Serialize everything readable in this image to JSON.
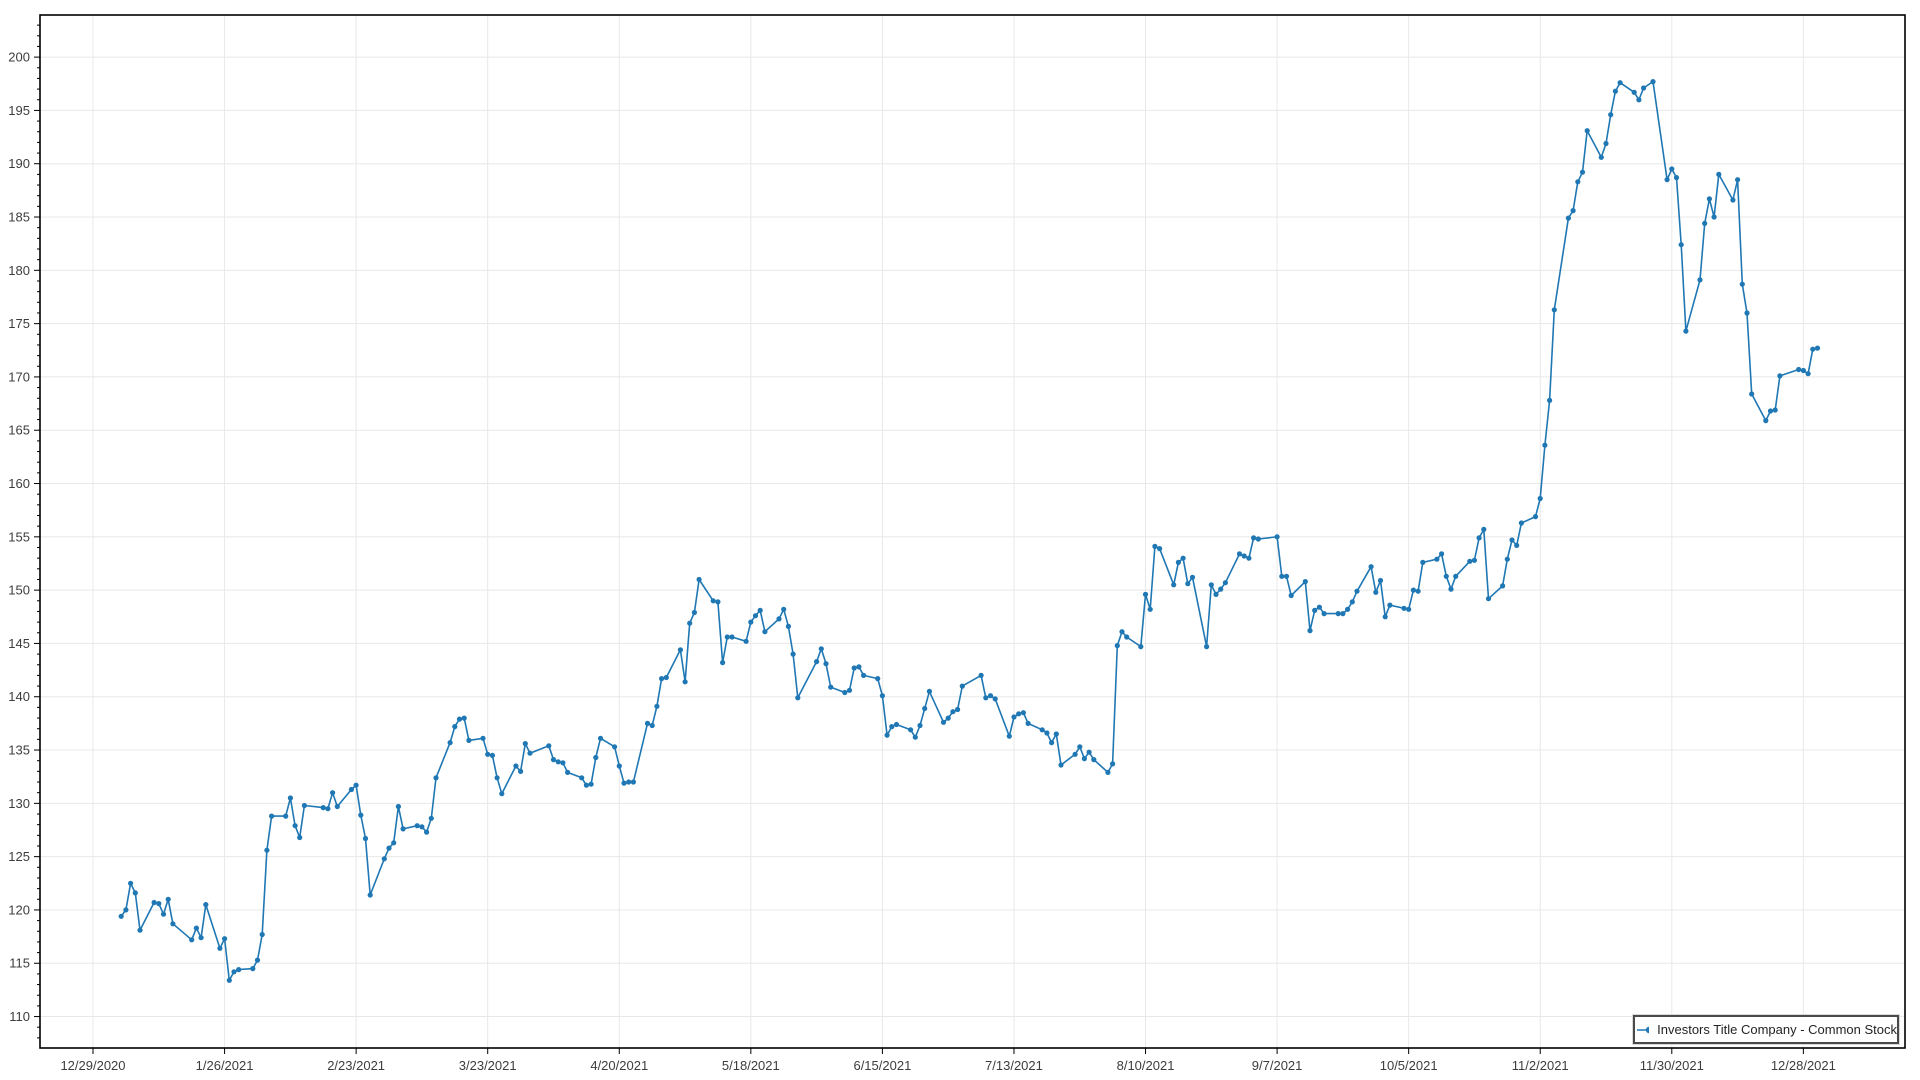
{
  "chart_data": {
    "type": "line",
    "title": "",
    "xlabel": "",
    "ylabel": "",
    "grid": true,
    "marker": "circle",
    "legend_position": "bottom-right",
    "colors": {
      "series": "#1f77b4",
      "grid": "#e8e8e8",
      "axis": "#000000",
      "tick_label": "#3d3d3d",
      "legend_border": "#4a4a4a",
      "background": "#ffffff"
    },
    "axes": {
      "x_epoch": "2020-12-29",
      "x_tick_interval_days": 28,
      "xlim_days": [
        -11.28,
        385.63
      ],
      "ylim": [
        107.05,
        203.95
      ],
      "y_major_step": 5,
      "y_minor_step": 1
    },
    "x_tick_labels": [
      "12/29/2020",
      "1/26/2021",
      "2/23/2021",
      "3/23/2021",
      "4/20/2021",
      "5/18/2021",
      "6/15/2021",
      "7/13/2021",
      "8/10/2021",
      "9/7/2021",
      "10/5/2021",
      "11/2/2021",
      "11/30/2021",
      "12/28/2021"
    ],
    "y_ticks": [
      110,
      115,
      120,
      125,
      130,
      135,
      140,
      145,
      150,
      155,
      160,
      165,
      170,
      175,
      180,
      185,
      190,
      195,
      200
    ],
    "series": [
      {
        "name": "Investors Title Company - Common Stock",
        "color": "#1f77b4",
        "dates": [
          "2021-01-04",
          "2021-01-05",
          "2021-01-06",
          "2021-01-07",
          "2021-01-08",
          "2021-01-11",
          "2021-01-12",
          "2021-01-13",
          "2021-01-14",
          "2021-01-15",
          "2021-01-19",
          "2021-01-20",
          "2021-01-21",
          "2021-01-22",
          "2021-01-25",
          "2021-01-26",
          "2021-01-27",
          "2021-01-28",
          "2021-01-29",
          "2021-02-01",
          "2021-02-02",
          "2021-02-03",
          "2021-02-04",
          "2021-02-05",
          "2021-02-08",
          "2021-02-09",
          "2021-02-10",
          "2021-02-11",
          "2021-02-12",
          "2021-02-16",
          "2021-02-17",
          "2021-02-18",
          "2021-02-19",
          "2021-02-22",
          "2021-02-23",
          "2021-02-24",
          "2021-02-25",
          "2021-02-26",
          "2021-03-01",
          "2021-03-02",
          "2021-03-03",
          "2021-03-04",
          "2021-03-05",
          "2021-03-08",
          "2021-03-09",
          "2021-03-10",
          "2021-03-11",
          "2021-03-12",
          "2021-03-15",
          "2021-03-16",
          "2021-03-17",
          "2021-03-18",
          "2021-03-19",
          "2021-03-22",
          "2021-03-23",
          "2021-03-24",
          "2021-03-25",
          "2021-03-26",
          "2021-03-29",
          "2021-03-30",
          "2021-03-31",
          "2021-04-01",
          "2021-04-05",
          "2021-04-06",
          "2021-04-07",
          "2021-04-08",
          "2021-04-09",
          "2021-04-12",
          "2021-04-13",
          "2021-04-14",
          "2021-04-15",
          "2021-04-16",
          "2021-04-19",
          "2021-04-20",
          "2021-04-21",
          "2021-04-22",
          "2021-04-23",
          "2021-04-26",
          "2021-04-27",
          "2021-04-28",
          "2021-04-29",
          "2021-04-30",
          "2021-05-03",
          "2021-05-04",
          "2021-05-05",
          "2021-05-06",
          "2021-05-07",
          "2021-05-10",
          "2021-05-11",
          "2021-05-12",
          "2021-05-13",
          "2021-05-14",
          "2021-05-17",
          "2021-05-18",
          "2021-05-19",
          "2021-05-20",
          "2021-05-21",
          "2021-05-24",
          "2021-05-25",
          "2021-05-26",
          "2021-05-27",
          "2021-05-28",
          "2021-06-01",
          "2021-06-02",
          "2021-06-03",
          "2021-06-04",
          "2021-06-07",
          "2021-06-08",
          "2021-06-09",
          "2021-06-10",
          "2021-06-11",
          "2021-06-14",
          "2021-06-15",
          "2021-06-16",
          "2021-06-17",
          "2021-06-18",
          "2021-06-21",
          "2021-06-22",
          "2021-06-23",
          "2021-06-24",
          "2021-06-25",
          "2021-06-28",
          "2021-06-29",
          "2021-06-30",
          "2021-07-01",
          "2021-07-02",
          "2021-07-06",
          "2021-07-07",
          "2021-07-08",
          "2021-07-09",
          "2021-07-12",
          "2021-07-13",
          "2021-07-14",
          "2021-07-15",
          "2021-07-16",
          "2021-07-19",
          "2021-07-20",
          "2021-07-21",
          "2021-07-22",
          "2021-07-23",
          "2021-07-26",
          "2021-07-27",
          "2021-07-28",
          "2021-07-29",
          "2021-07-30",
          "2021-08-02",
          "2021-08-03",
          "2021-08-04",
          "2021-08-05",
          "2021-08-06",
          "2021-08-09",
          "2021-08-10",
          "2021-08-11",
          "2021-08-12",
          "2021-08-13",
          "2021-08-16",
          "2021-08-17",
          "2021-08-18",
          "2021-08-19",
          "2021-08-20",
          "2021-08-23",
          "2021-08-24",
          "2021-08-25",
          "2021-08-26",
          "2021-08-27",
          "2021-08-30",
          "2021-08-31",
          "2021-09-01",
          "2021-09-02",
          "2021-09-03",
          "2021-09-07",
          "2021-09-08",
          "2021-09-09",
          "2021-09-10",
          "2021-09-13",
          "2021-09-14",
          "2021-09-15",
          "2021-09-16",
          "2021-09-17",
          "2021-09-20",
          "2021-09-21",
          "2021-09-22",
          "2021-09-23",
          "2021-09-24",
          "2021-09-27",
          "2021-09-28",
          "2021-09-29",
          "2021-09-30",
          "2021-10-01",
          "2021-10-04",
          "2021-10-05",
          "2021-10-06",
          "2021-10-07",
          "2021-10-08",
          "2021-10-11",
          "2021-10-12",
          "2021-10-13",
          "2021-10-14",
          "2021-10-15",
          "2021-10-18",
          "2021-10-19",
          "2021-10-20",
          "2021-10-21",
          "2021-10-22",
          "2021-10-25",
          "2021-10-26",
          "2021-10-27",
          "2021-10-28",
          "2021-10-29",
          "2021-11-01",
          "2021-11-02",
          "2021-11-03",
          "2021-11-04",
          "2021-11-05",
          "2021-11-08",
          "2021-11-09",
          "2021-11-10",
          "2021-11-11",
          "2021-11-12",
          "2021-11-15",
          "2021-11-16",
          "2021-11-17",
          "2021-11-18",
          "2021-11-19",
          "2021-11-22",
          "2021-11-23",
          "2021-11-24",
          "2021-11-26",
          "2021-11-29",
          "2021-11-30",
          "2021-12-01",
          "2021-12-02",
          "2021-12-03",
          "2021-12-06",
          "2021-12-07",
          "2021-12-08",
          "2021-12-09",
          "2021-12-10",
          "2021-12-13",
          "2021-12-14",
          "2021-12-15",
          "2021-12-16",
          "2021-12-17",
          "2021-12-20",
          "2021-12-21",
          "2021-12-22",
          "2021-12-23",
          "2021-12-27",
          "2021-12-28",
          "2021-12-29",
          "2021-12-30",
          "2021-12-31"
        ],
        "values": [
          119.4,
          120.0,
          122.5,
          121.6,
          118.1,
          120.7,
          120.6,
          119.6,
          121.0,
          118.7,
          117.2,
          118.3,
          117.4,
          120.5,
          116.4,
          117.3,
          113.4,
          114.2,
          114.4,
          114.5,
          115.3,
          117.7,
          125.6,
          128.8,
          128.8,
          130.5,
          127.9,
          126.8,
          129.8,
          129.6,
          129.5,
          131.0,
          129.7,
          131.3,
          131.7,
          128.9,
          126.7,
          121.4,
          124.8,
          125.8,
          126.3,
          129.7,
          127.6,
          127.9,
          127.8,
          127.3,
          128.6,
          132.4,
          135.7,
          137.2,
          137.9,
          138.0,
          135.9,
          136.1,
          134.6,
          134.5,
          132.4,
          130.9,
          133.5,
          133.0,
          135.6,
          134.7,
          135.4,
          134.1,
          133.9,
          133.8,
          132.9,
          132.4,
          131.7,
          131.8,
          134.3,
          136.1,
          135.3,
          133.5,
          131.9,
          132.0,
          132.0,
          137.5,
          137.3,
          139.1,
          141.7,
          141.8,
          144.4,
          141.4,
          146.9,
          147.9,
          151.0,
          149.0,
          148.9,
          143.2,
          145.6,
          145.6,
          145.2,
          147.0,
          147.6,
          148.1,
          146.1,
          147.3,
          148.2,
          146.6,
          144.0,
          139.9,
          143.3,
          144.5,
          143.1,
          140.9,
          140.4,
          140.6,
          142.7,
          142.8,
          142.0,
          141.7,
          140.1,
          136.4,
          137.2,
          137.4,
          136.9,
          136.2,
          137.3,
          138.9,
          140.5,
          137.6,
          138.0,
          138.6,
          138.8,
          141.0,
          142.0,
          139.9,
          140.1,
          139.8,
          136.3,
          138.1,
          138.4,
          138.5,
          137.5,
          136.9,
          136.6,
          135.7,
          136.5,
          133.6,
          134.6,
          135.3,
          134.2,
          134.8,
          134.1,
          132.9,
          133.7,
          144.8,
          146.1,
          145.6,
          144.7,
          149.6,
          148.2,
          154.1,
          153.9,
          150.5,
          152.6,
          153.0,
          150.6,
          151.2,
          144.7,
          150.5,
          149.6,
          150.1,
          150.7,
          153.4,
          153.2,
          153.0,
          154.9,
          154.8,
          155.0,
          151.3,
          151.3,
          149.5,
          150.8,
          146.2,
          148.1,
          148.4,
          147.8,
          147.8,
          147.8,
          148.2,
          148.9,
          149.9,
          152.2,
          149.8,
          150.9,
          147.5,
          148.6,
          148.3,
          148.2,
          150.0,
          149.9,
          152.6,
          152.9,
          153.4,
          151.3,
          150.1,
          151.3,
          152.7,
          152.8,
          154.9,
          155.7,
          149.2,
          150.4,
          152.9,
          154.7,
          154.2,
          156.3,
          156.9,
          158.6,
          163.6,
          167.8,
          176.3,
          184.9,
          185.6,
          188.3,
          189.2,
          193.1,
          190.6,
          191.9,
          194.6,
          196.8,
          197.6,
          196.7,
          196.0,
          197.1,
          197.7,
          188.5,
          189.5,
          188.7,
          182.4,
          174.3,
          179.1,
          184.4,
          186.7,
          185.0,
          189.0,
          186.6,
          188.5,
          178.7,
          176.0,
          168.4,
          165.9,
          166.8,
          166.9,
          170.1,
          170.7,
          170.6,
          170.3,
          172.6,
          172.7
        ]
      }
    ]
  }
}
